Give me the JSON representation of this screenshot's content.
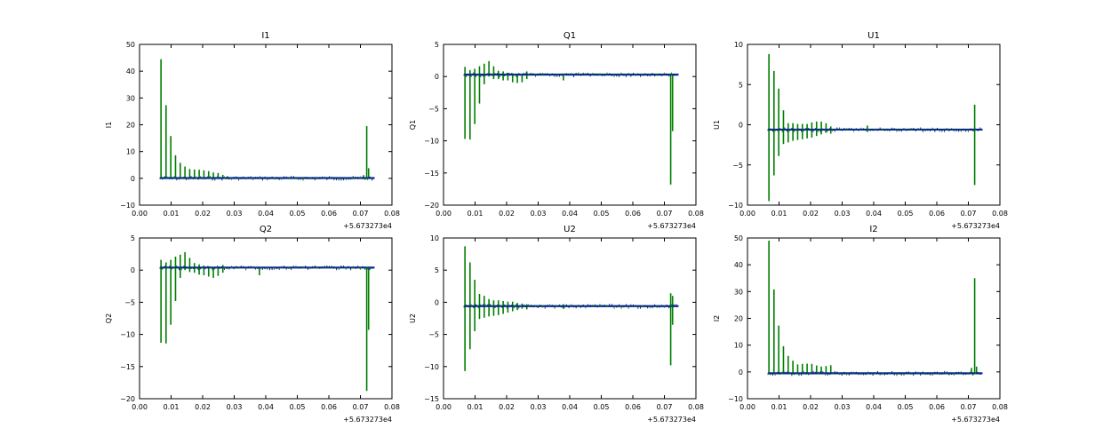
{
  "chart_data": [
    {
      "type": "line",
      "title": "I1",
      "ylabel": "I1",
      "xlim": [
        0.0,
        0.08
      ],
      "ylim": [
        -10,
        50
      ],
      "x_ticks": [
        "0.00",
        "0.01",
        "0.02",
        "0.03",
        "0.04",
        "0.05",
        "0.06",
        "0.07",
        "0.08"
      ],
      "y_ticks": [
        "−10",
        "0",
        "10",
        "20",
        "30",
        "40",
        "50"
      ],
      "y_tick_values": [
        -10,
        0,
        10,
        20,
        30,
        40,
        50
      ],
      "x_offset": "+5.673273e4",
      "baseline": 0.1,
      "spikes": [
        {
          "x": 0.0068,
          "lo": 0,
          "hi": 44.5
        },
        {
          "x": 0.0084,
          "lo": 0,
          "hi": 27.3
        },
        {
          "x": 0.0099,
          "lo": 0,
          "hi": 15.8
        },
        {
          "x": 0.0114,
          "lo": 0,
          "hi": 8.6
        },
        {
          "x": 0.0129,
          "lo": 0,
          "hi": 5.8
        },
        {
          "x": 0.0144,
          "lo": 0,
          "hi": 4.4
        },
        {
          "x": 0.0159,
          "lo": 0,
          "hi": 3.5
        },
        {
          "x": 0.0174,
          "lo": 0,
          "hi": 3.3
        },
        {
          "x": 0.0189,
          "lo": 0,
          "hi": 3.2
        },
        {
          "x": 0.0204,
          "lo": 0,
          "hi": 3.0
        },
        {
          "x": 0.0219,
          "lo": 0,
          "hi": 2.7
        },
        {
          "x": 0.0234,
          "lo": 0,
          "hi": 2.2
        },
        {
          "x": 0.0249,
          "lo": 0,
          "hi": 2.0
        },
        {
          "x": 0.0264,
          "lo": 0,
          "hi": 1.3
        },
        {
          "x": 0.0279,
          "lo": 0,
          "hi": 0.8
        },
        {
          "x": 0.072,
          "lo": 0,
          "hi": 19.5
        },
        {
          "x": 0.0726,
          "lo": 0,
          "hi": 3.8
        },
        {
          "x": 0.071,
          "lo": 0,
          "hi": 1.2
        }
      ]
    },
    {
      "type": "line",
      "title": "Q1",
      "ylabel": "Q1",
      "xlim": [
        0.0,
        0.08
      ],
      "ylim": [
        -20,
        5
      ],
      "x_ticks": [
        "0.00",
        "0.01",
        "0.02",
        "0.03",
        "0.04",
        "0.05",
        "0.06",
        "0.07",
        "0.08"
      ],
      "y_ticks": [
        "−20",
        "−15",
        "−10",
        "−5",
        "0",
        "5"
      ],
      "y_tick_values": [
        -20,
        -15,
        -10,
        -5,
        0,
        5
      ],
      "x_offset": "+5.673273e4",
      "baseline": 0.3,
      "spikes": [
        {
          "x": 0.0068,
          "lo": -9.7,
          "hi": 1.5
        },
        {
          "x": 0.0084,
          "lo": -9.8,
          "hi": 1.0
        },
        {
          "x": 0.0099,
          "lo": -7.4,
          "hi": 1.2
        },
        {
          "x": 0.0114,
          "lo": -4.2,
          "hi": 1.6
        },
        {
          "x": 0.0129,
          "lo": -1.2,
          "hi": 2.0
        },
        {
          "x": 0.0144,
          "lo": 0,
          "hi": 2.4
        },
        {
          "x": 0.0159,
          "lo": -0.4,
          "hi": 1.6
        },
        {
          "x": 0.0174,
          "lo": -0.4,
          "hi": 0.9
        },
        {
          "x": 0.0189,
          "lo": -0.6,
          "hi": 0.8
        },
        {
          "x": 0.0204,
          "lo": -0.6,
          "hi": 0.6
        },
        {
          "x": 0.0219,
          "lo": -0.9,
          "hi": 0.5
        },
        {
          "x": 0.0234,
          "lo": -1.0,
          "hi": 0.4
        },
        {
          "x": 0.0249,
          "lo": -0.9,
          "hi": 0.4
        },
        {
          "x": 0.0264,
          "lo": -0.4,
          "hi": 0.8
        },
        {
          "x": 0.038,
          "lo": -0.6,
          "hi": 0.3
        },
        {
          "x": 0.072,
          "lo": -16.8,
          "hi": 0.3
        },
        {
          "x": 0.0726,
          "lo": -8.5,
          "hi": 0.3
        }
      ]
    },
    {
      "type": "line",
      "title": "U1",
      "ylabel": "U1",
      "xlim": [
        0.0,
        0.08
      ],
      "ylim": [
        -10,
        10
      ],
      "x_ticks": [
        "0.00",
        "0.01",
        "0.02",
        "0.03",
        "0.04",
        "0.05",
        "0.06",
        "0.07",
        "0.08"
      ],
      "y_ticks": [
        "−10",
        "−5",
        "0",
        "5",
        "10"
      ],
      "y_tick_values": [
        -10,
        -5,
        0,
        5,
        10
      ],
      "x_offset": "+5.673273e4",
      "baseline": -0.6,
      "spikes": [
        {
          "x": 0.0068,
          "lo": -9.5,
          "hi": 8.8
        },
        {
          "x": 0.0084,
          "lo": -6.3,
          "hi": 6.7
        },
        {
          "x": 0.0099,
          "lo": -3.9,
          "hi": 4.5
        },
        {
          "x": 0.0114,
          "lo": -2.4,
          "hi": 1.8
        },
        {
          "x": 0.0129,
          "lo": -2.2,
          "hi": 0.2
        },
        {
          "x": 0.0144,
          "lo": -2.0,
          "hi": 0.2
        },
        {
          "x": 0.0159,
          "lo": -1.9,
          "hi": 0.1
        },
        {
          "x": 0.0174,
          "lo": -1.8,
          "hi": 0.1
        },
        {
          "x": 0.0189,
          "lo": -1.7,
          "hi": 0.1
        },
        {
          "x": 0.0204,
          "lo": -1.6,
          "hi": 0.3
        },
        {
          "x": 0.0219,
          "lo": -1.4,
          "hi": 0.4
        },
        {
          "x": 0.0234,
          "lo": -1.2,
          "hi": 0.4
        },
        {
          "x": 0.0249,
          "lo": -1.0,
          "hi": 0.2
        },
        {
          "x": 0.0264,
          "lo": -1.1,
          "hi": -0.2
        },
        {
          "x": 0.038,
          "lo": -0.9,
          "hi": -0.1
        },
        {
          "x": 0.072,
          "lo": -7.5,
          "hi": 2.5
        }
      ]
    },
    {
      "type": "line",
      "title": "Q2",
      "ylabel": "Q2",
      "xlim": [
        0.0,
        0.08
      ],
      "ylim": [
        -20,
        5
      ],
      "x_ticks": [
        "0.00",
        "0.01",
        "0.02",
        "0.03",
        "0.04",
        "0.05",
        "0.06",
        "0.07",
        "0.08"
      ],
      "y_ticks": [
        "−20",
        "−15",
        "−10",
        "−5",
        "0",
        "5"
      ],
      "y_tick_values": [
        -20,
        -15,
        -10,
        -5,
        0,
        5
      ],
      "x_offset": "+5.673273e4",
      "baseline": 0.4,
      "spikes": [
        {
          "x": 0.0068,
          "lo": -11.3,
          "hi": 1.6
        },
        {
          "x": 0.0084,
          "lo": -11.4,
          "hi": 1.2
        },
        {
          "x": 0.0099,
          "lo": -8.5,
          "hi": 1.6
        },
        {
          "x": 0.0114,
          "lo": -4.8,
          "hi": 2.1
        },
        {
          "x": 0.0129,
          "lo": -1.2,
          "hi": 2.4
        },
        {
          "x": 0.0144,
          "lo": 0,
          "hi": 2.8
        },
        {
          "x": 0.0159,
          "lo": -0.3,
          "hi": 1.9
        },
        {
          "x": 0.0174,
          "lo": -0.4,
          "hi": 1.1
        },
        {
          "x": 0.0189,
          "lo": -0.7,
          "hi": 0.9
        },
        {
          "x": 0.0204,
          "lo": -0.8,
          "hi": 0.7
        },
        {
          "x": 0.0219,
          "lo": -1.0,
          "hi": 0.6
        },
        {
          "x": 0.0234,
          "lo": -1.2,
          "hi": 0.5
        },
        {
          "x": 0.0249,
          "lo": -0.9,
          "hi": 0.6
        },
        {
          "x": 0.0264,
          "lo": -0.4,
          "hi": 0.8
        },
        {
          "x": 0.038,
          "lo": -0.8,
          "hi": 0.4
        },
        {
          "x": 0.072,
          "lo": -18.8,
          "hi": 0.4
        },
        {
          "x": 0.0726,
          "lo": -9.3,
          "hi": 0.4
        }
      ]
    },
    {
      "type": "line",
      "title": "U2",
      "ylabel": "U2",
      "xlim": [
        0.0,
        0.08
      ],
      "ylim": [
        -15,
        10
      ],
      "x_ticks": [
        "0.00",
        "0.01",
        "0.02",
        "0.03",
        "0.04",
        "0.05",
        "0.06",
        "0.07",
        "0.08"
      ],
      "y_ticks": [
        "−15",
        "−10",
        "−5",
        "0",
        "5",
        "10"
      ],
      "y_tick_values": [
        -15,
        -10,
        -5,
        0,
        5,
        10
      ],
      "x_offset": "+5.673273e4",
      "baseline": -0.6,
      "spikes": [
        {
          "x": 0.0068,
          "lo": -10.7,
          "hi": 8.7
        },
        {
          "x": 0.0084,
          "lo": -7.3,
          "hi": 6.2
        },
        {
          "x": 0.0099,
          "lo": -4.5,
          "hi": 3.5
        },
        {
          "x": 0.0114,
          "lo": -2.6,
          "hi": 1.3
        },
        {
          "x": 0.0129,
          "lo": -2.4,
          "hi": 1.0
        },
        {
          "x": 0.0144,
          "lo": -2.2,
          "hi": 0.5
        },
        {
          "x": 0.0159,
          "lo": -2.1,
          "hi": 0.3
        },
        {
          "x": 0.0174,
          "lo": -2.0,
          "hi": 0.3
        },
        {
          "x": 0.0189,
          "lo": -1.8,
          "hi": 0.2
        },
        {
          "x": 0.0204,
          "lo": -1.6,
          "hi": 0.1
        },
        {
          "x": 0.0219,
          "lo": -1.4,
          "hi": 0.1
        },
        {
          "x": 0.0234,
          "lo": -1.2,
          "hi": -0.1
        },
        {
          "x": 0.0249,
          "lo": -1.0,
          "hi": -0.2
        },
        {
          "x": 0.0264,
          "lo": -1.1,
          "hi": -0.3
        },
        {
          "x": 0.038,
          "lo": -1.0,
          "hi": -0.3
        },
        {
          "x": 0.072,
          "lo": -9.8,
          "hi": 1.4
        },
        {
          "x": 0.0726,
          "lo": -3.5,
          "hi": 1.0
        }
      ]
    },
    {
      "type": "line",
      "title": "I2",
      "ylabel": "I2",
      "xlim": [
        0.0,
        0.08
      ],
      "ylim": [
        -10,
        50
      ],
      "x_ticks": [
        "0.00",
        "0.01",
        "0.02",
        "0.03",
        "0.04",
        "0.05",
        "0.06",
        "0.07",
        "0.08"
      ],
      "y_ticks": [
        "−10",
        "0",
        "10",
        "20",
        "30",
        "40",
        "50"
      ],
      "y_tick_values": [
        -10,
        0,
        10,
        20,
        30,
        40,
        50
      ],
      "x_offset": "+5.673273e4",
      "baseline": -0.5,
      "spikes": [
        {
          "x": 0.0068,
          "lo": -0.5,
          "hi": 49.0
        },
        {
          "x": 0.0084,
          "lo": -0.5,
          "hi": 30.8
        },
        {
          "x": 0.0099,
          "lo": -0.5,
          "hi": 17.3
        },
        {
          "x": 0.0114,
          "lo": -0.5,
          "hi": 9.6
        },
        {
          "x": 0.0129,
          "lo": -0.5,
          "hi": 6.0
        },
        {
          "x": 0.0144,
          "lo": -0.5,
          "hi": 4.2
        },
        {
          "x": 0.0159,
          "lo": -0.5,
          "hi": 2.8
        },
        {
          "x": 0.0174,
          "lo": -0.5,
          "hi": 3.0
        },
        {
          "x": 0.0189,
          "lo": -0.5,
          "hi": 3.1
        },
        {
          "x": 0.0204,
          "lo": -0.5,
          "hi": 3.0
        },
        {
          "x": 0.0219,
          "lo": -0.5,
          "hi": 2.4
        },
        {
          "x": 0.0234,
          "lo": -0.5,
          "hi": 2.0
        },
        {
          "x": 0.0249,
          "lo": -0.5,
          "hi": 2.2
        },
        {
          "x": 0.0264,
          "lo": -0.5,
          "hi": 2.5
        },
        {
          "x": 0.072,
          "lo": -0.5,
          "hi": 35.0
        },
        {
          "x": 0.071,
          "lo": -0.5,
          "hi": 1.5
        },
        {
          "x": 0.0726,
          "lo": -0.5,
          "hi": 2.0
        }
      ]
    }
  ],
  "style": {
    "spike_color": "#007f00",
    "baseline_color": "#0a2a8a",
    "axis_color": "#000000"
  }
}
